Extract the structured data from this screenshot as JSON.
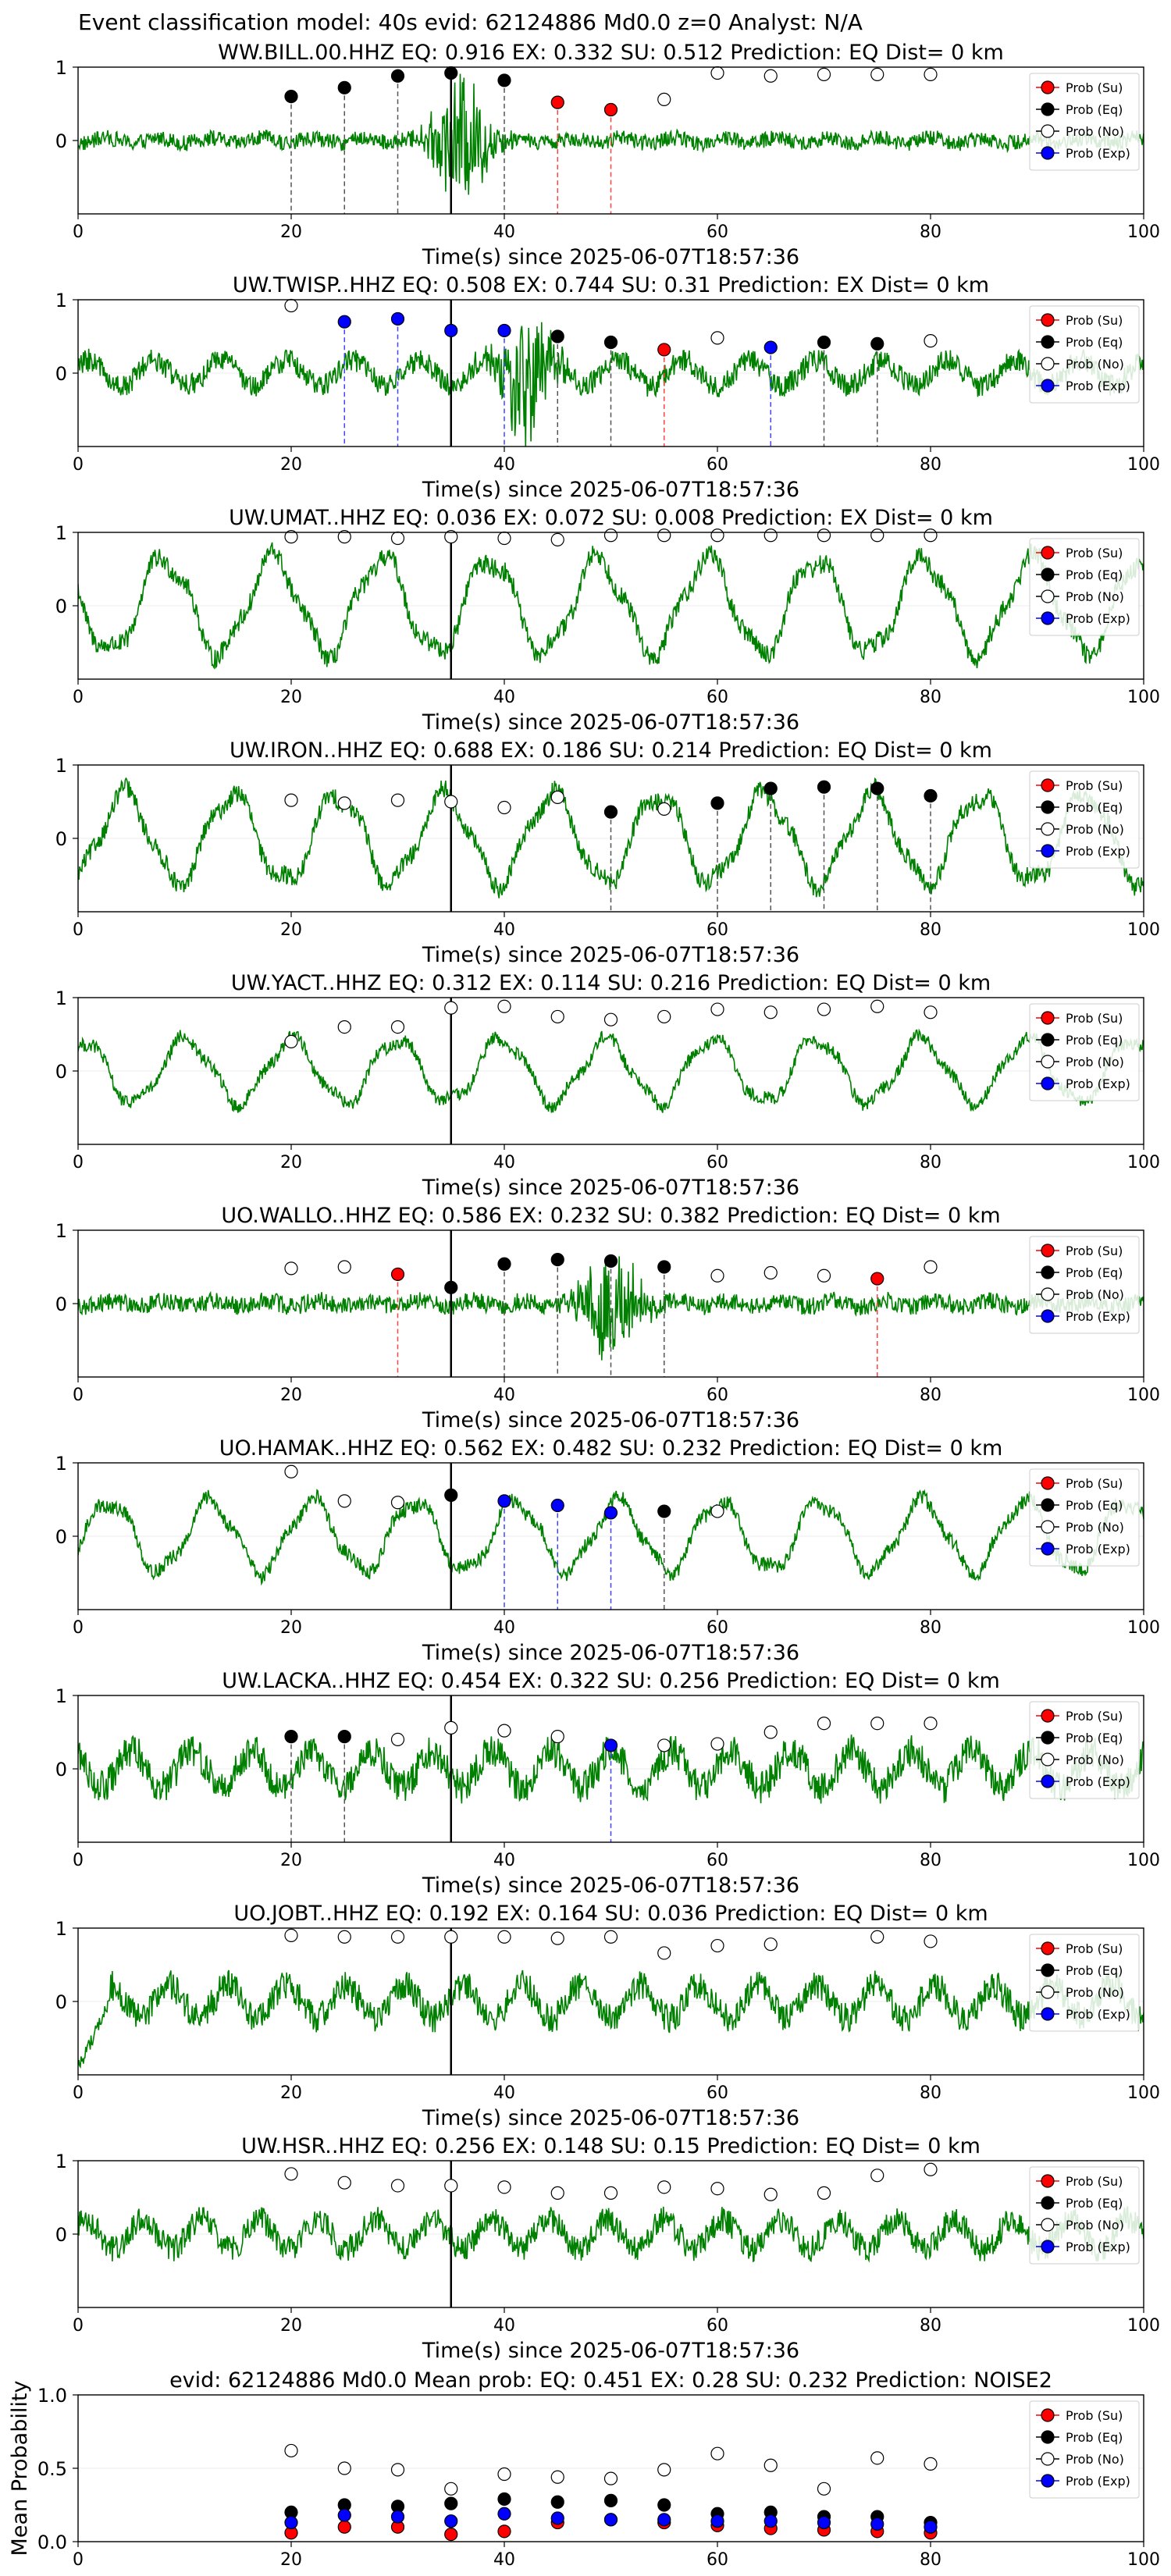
{
  "figure": {
    "suptitle": "Event classification model: 40s evid: 62124886 Md0.0 z=0 Analyst: N/A"
  },
  "legend_labels": [
    "Prob (Su)",
    "Prob (Eq)",
    "Prob (No)",
    "Prob (Exp)"
  ],
  "class_colors": {
    "Su": "#ff0000",
    "Eq": "#000000",
    "No": "#ffffff",
    "Exp": "#0000ff"
  },
  "waveform_color": "#008000",
  "chart_data": [
    {
      "type": "line",
      "title": "WW.BILL.00.HHZ   EQ: 0.916   EX: 0.332   SU: 0.512   Prediction: EQ    Dist= 0 km",
      "xlabel": "Time(s) since 2025-06-07T18:57:36",
      "xlim": [
        0,
        100
      ],
      "xticks": [
        0,
        20,
        40,
        60,
        80,
        100
      ],
      "ylim": [
        -1,
        1
      ],
      "yticks": [
        0,
        1
      ],
      "pick_time": 35,
      "waveform": {
        "amplitude": 0.18,
        "style": "noise",
        "burst_center": 36,
        "burst_amp": 0.85
      },
      "points": [
        {
          "t": 20,
          "p": 0.6,
          "cls": "Eq"
        },
        {
          "t": 25,
          "p": 0.72,
          "cls": "Eq"
        },
        {
          "t": 30,
          "p": 0.88,
          "cls": "Eq"
        },
        {
          "t": 35,
          "p": 0.92,
          "cls": "Eq"
        },
        {
          "t": 40,
          "p": 0.82,
          "cls": "Eq"
        },
        {
          "t": 45,
          "p": 0.52,
          "cls": "Su"
        },
        {
          "t": 50,
          "p": 0.42,
          "cls": "Su"
        },
        {
          "t": 55,
          "p": 0.56,
          "cls": "No"
        },
        {
          "t": 60,
          "p": 0.92,
          "cls": "No"
        },
        {
          "t": 65,
          "p": 0.88,
          "cls": "No"
        },
        {
          "t": 70,
          "p": 0.9,
          "cls": "No"
        },
        {
          "t": 75,
          "p": 0.9,
          "cls": "No"
        },
        {
          "t": 80,
          "p": 0.9,
          "cls": "No"
        }
      ]
    },
    {
      "type": "line",
      "title": "UW.TWISP..HHZ   EQ: 0.508   EX: 0.744   SU: 0.31   Prediction: EX    Dist= 0 km",
      "xlabel": "Time(s) since 2025-06-07T18:57:36",
      "xlim": [
        0,
        100
      ],
      "xticks": [
        0,
        20,
        40,
        60,
        80,
        100
      ],
      "ylim": [
        -1,
        1
      ],
      "yticks": [
        0,
        1
      ],
      "pick_time": 35,
      "waveform": {
        "amplitude": 0.35,
        "style": "mixed",
        "burst_center": 42,
        "burst_amp": 0.85
      },
      "points": [
        {
          "t": 20,
          "p": 0.92,
          "cls": "No"
        },
        {
          "t": 25,
          "p": 0.7,
          "cls": "Exp"
        },
        {
          "t": 30,
          "p": 0.74,
          "cls": "Exp"
        },
        {
          "t": 35,
          "p": 0.58,
          "cls": "Exp"
        },
        {
          "t": 40,
          "p": 0.58,
          "cls": "Exp"
        },
        {
          "t": 45,
          "p": 0.5,
          "cls": "Eq"
        },
        {
          "t": 50,
          "p": 0.42,
          "cls": "Eq"
        },
        {
          "t": 55,
          "p": 0.32,
          "cls": "Su"
        },
        {
          "t": 60,
          "p": 0.48,
          "cls": "No"
        },
        {
          "t": 65,
          "p": 0.35,
          "cls": "Exp"
        },
        {
          "t": 70,
          "p": 0.42,
          "cls": "Eq"
        },
        {
          "t": 75,
          "p": 0.4,
          "cls": "Eq"
        },
        {
          "t": 80,
          "p": 0.44,
          "cls": "No"
        }
      ]
    },
    {
      "type": "line",
      "title": "UW.UMAT..HHZ   EQ: 0.036   EX: 0.072   SU: 0.008   Prediction: EX    Dist= 0 km",
      "xlabel": "Time(s) since 2025-06-07T18:57:36",
      "xlim": [
        0,
        100
      ],
      "xticks": [
        0,
        20,
        40,
        60,
        80,
        100
      ],
      "ylim": [
        -1,
        1
      ],
      "yticks": [
        0,
        1
      ],
      "pick_time": 35,
      "waveform": {
        "amplitude": 0.75,
        "style": "wave"
      },
      "points": [
        {
          "t": 20,
          "p": 0.94,
          "cls": "No"
        },
        {
          "t": 25,
          "p": 0.94,
          "cls": "No"
        },
        {
          "t": 30,
          "p": 0.92,
          "cls": "No"
        },
        {
          "t": 35,
          "p": 0.94,
          "cls": "No"
        },
        {
          "t": 40,
          "p": 0.92,
          "cls": "No"
        },
        {
          "t": 45,
          "p": 0.9,
          "cls": "No"
        },
        {
          "t": 50,
          "p": 0.96,
          "cls": "No"
        },
        {
          "t": 55,
          "p": 0.96,
          "cls": "No"
        },
        {
          "t": 60,
          "p": 0.96,
          "cls": "No"
        },
        {
          "t": 65,
          "p": 0.96,
          "cls": "No"
        },
        {
          "t": 70,
          "p": 0.96,
          "cls": "No"
        },
        {
          "t": 75,
          "p": 0.96,
          "cls": "No"
        },
        {
          "t": 80,
          "p": 0.96,
          "cls": "No"
        }
      ]
    },
    {
      "type": "line",
      "title": "UW.IRON..HHZ   EQ: 0.688   EX: 0.186   SU: 0.214   Prediction: EQ    Dist= 0 km",
      "xlabel": "Time(s) since 2025-06-07T18:57:36",
      "xlim": [
        0,
        100
      ],
      "xticks": [
        0,
        20,
        40,
        60,
        80,
        100
      ],
      "ylim": [
        -1,
        1
      ],
      "yticks": [
        0,
        1
      ],
      "pick_time": 35,
      "waveform": {
        "amplitude": 0.7,
        "style": "wave"
      },
      "points": [
        {
          "t": 20,
          "p": 0.52,
          "cls": "No"
        },
        {
          "t": 25,
          "p": 0.48,
          "cls": "No"
        },
        {
          "t": 30,
          "p": 0.52,
          "cls": "No"
        },
        {
          "t": 35,
          "p": 0.5,
          "cls": "No"
        },
        {
          "t": 40,
          "p": 0.42,
          "cls": "No"
        },
        {
          "t": 45,
          "p": 0.56,
          "cls": "No"
        },
        {
          "t": 50,
          "p": 0.36,
          "cls": "Eq"
        },
        {
          "t": 55,
          "p": 0.4,
          "cls": "No"
        },
        {
          "t": 60,
          "p": 0.48,
          "cls": "Eq"
        },
        {
          "t": 65,
          "p": 0.68,
          "cls": "Eq"
        },
        {
          "t": 70,
          "p": 0.7,
          "cls": "Eq"
        },
        {
          "t": 75,
          "p": 0.68,
          "cls": "Eq"
        },
        {
          "t": 80,
          "p": 0.58,
          "cls": "Eq"
        }
      ]
    },
    {
      "type": "line",
      "title": "UW.YACT..HHZ   EQ: 0.312   EX: 0.114   SU: 0.216   Prediction: EQ    Dist= 0 km",
      "xlabel": "Time(s) since 2025-06-07T18:57:36",
      "xlim": [
        0,
        100
      ],
      "xticks": [
        0,
        20,
        40,
        60,
        80,
        100
      ],
      "ylim": [
        -1,
        1
      ],
      "yticks": [
        0,
        1
      ],
      "pick_time": 35,
      "waveform": {
        "amplitude": 0.5,
        "style": "wave"
      },
      "points": [
        {
          "t": 20,
          "p": 0.4,
          "cls": "No"
        },
        {
          "t": 25,
          "p": 0.6,
          "cls": "No"
        },
        {
          "t": 30,
          "p": 0.6,
          "cls": "No"
        },
        {
          "t": 35,
          "p": 0.86,
          "cls": "No"
        },
        {
          "t": 40,
          "p": 0.88,
          "cls": "No"
        },
        {
          "t": 45,
          "p": 0.74,
          "cls": "No"
        },
        {
          "t": 50,
          "p": 0.7,
          "cls": "No"
        },
        {
          "t": 55,
          "p": 0.74,
          "cls": "No"
        },
        {
          "t": 60,
          "p": 0.84,
          "cls": "No"
        },
        {
          "t": 65,
          "p": 0.8,
          "cls": "No"
        },
        {
          "t": 70,
          "p": 0.84,
          "cls": "No"
        },
        {
          "t": 75,
          "p": 0.88,
          "cls": "No"
        },
        {
          "t": 80,
          "p": 0.8,
          "cls": "No"
        }
      ]
    },
    {
      "type": "line",
      "title": "UO.WALLO..HHZ   EQ: 0.586   EX: 0.232   SU: 0.382   Prediction: EQ    Dist= 0 km",
      "xlabel": "Time(s) since 2025-06-07T18:57:36",
      "xlim": [
        0,
        100
      ],
      "xticks": [
        0,
        20,
        40,
        60,
        80,
        100
      ],
      "ylim": [
        -1,
        1
      ],
      "yticks": [
        0,
        1
      ],
      "pick_time": 35,
      "waveform": {
        "amplitude": 0.2,
        "style": "noise",
        "burst_center": 50,
        "burst_amp": 0.75
      },
      "points": [
        {
          "t": 20,
          "p": 0.48,
          "cls": "No"
        },
        {
          "t": 25,
          "p": 0.5,
          "cls": "No"
        },
        {
          "t": 30,
          "p": 0.4,
          "cls": "Su"
        },
        {
          "t": 35,
          "p": 0.22,
          "cls": "Eq"
        },
        {
          "t": 40,
          "p": 0.54,
          "cls": "Eq"
        },
        {
          "t": 45,
          "p": 0.6,
          "cls": "Eq"
        },
        {
          "t": 50,
          "p": 0.58,
          "cls": "Eq"
        },
        {
          "t": 55,
          "p": 0.5,
          "cls": "Eq"
        },
        {
          "t": 60,
          "p": 0.38,
          "cls": "No"
        },
        {
          "t": 65,
          "p": 0.42,
          "cls": "No"
        },
        {
          "t": 70,
          "p": 0.38,
          "cls": "No"
        },
        {
          "t": 75,
          "p": 0.34,
          "cls": "Su"
        },
        {
          "t": 80,
          "p": 0.5,
          "cls": "No"
        }
      ]
    },
    {
      "type": "line",
      "title": "UO.HAMAK..HHZ   EQ: 0.562   EX: 0.482   SU: 0.232   Prediction: EQ    Dist= 0 km",
      "xlabel": "Time(s) since 2025-06-07T18:57:36",
      "xlim": [
        0,
        100
      ],
      "xticks": [
        0,
        20,
        40,
        60,
        80,
        100
      ],
      "ylim": [
        -1,
        1
      ],
      "yticks": [
        0,
        1
      ],
      "pick_time": 35,
      "waveform": {
        "amplitude": 0.55,
        "style": "wave"
      },
      "points": [
        {
          "t": 20,
          "p": 0.88,
          "cls": "No"
        },
        {
          "t": 25,
          "p": 0.48,
          "cls": "No"
        },
        {
          "t": 30,
          "p": 0.46,
          "cls": "No"
        },
        {
          "t": 35,
          "p": 0.56,
          "cls": "Eq"
        },
        {
          "t": 40,
          "p": 0.48,
          "cls": "Exp"
        },
        {
          "t": 45,
          "p": 0.42,
          "cls": "Exp"
        },
        {
          "t": 50,
          "p": 0.32,
          "cls": "Exp"
        },
        {
          "t": 55,
          "p": 0.34,
          "cls": "Eq"
        },
        {
          "t": 60,
          "p": 0.34,
          "cls": "No"
        }
      ]
    },
    {
      "type": "line",
      "title": "UW.LACKA..HHZ   EQ: 0.454   EX: 0.322   SU: 0.256   Prediction: EQ    Dist= 0 km",
      "xlabel": "Time(s) since 2025-06-07T18:57:36",
      "xlim": [
        0,
        100
      ],
      "xticks": [
        0,
        20,
        40,
        60,
        80,
        100
      ],
      "ylim": [
        -1,
        1
      ],
      "yticks": [
        0,
        1
      ],
      "pick_time": 35,
      "waveform": {
        "amplitude": 0.5,
        "style": "mixed"
      },
      "points": [
        {
          "t": 20,
          "p": 0.44,
          "cls": "Eq"
        },
        {
          "t": 25,
          "p": 0.44,
          "cls": "Eq"
        },
        {
          "t": 30,
          "p": 0.4,
          "cls": "No"
        },
        {
          "t": 35,
          "p": 0.56,
          "cls": "No"
        },
        {
          "t": 40,
          "p": 0.52,
          "cls": "No"
        },
        {
          "t": 45,
          "p": 0.44,
          "cls": "No"
        },
        {
          "t": 50,
          "p": 0.32,
          "cls": "Exp"
        },
        {
          "t": 55,
          "p": 0.32,
          "cls": "No"
        },
        {
          "t": 60,
          "p": 0.34,
          "cls": "No"
        },
        {
          "t": 65,
          "p": 0.5,
          "cls": "No"
        },
        {
          "t": 70,
          "p": 0.62,
          "cls": "No"
        },
        {
          "t": 75,
          "p": 0.62,
          "cls": "No"
        },
        {
          "t": 80,
          "p": 0.62,
          "cls": "No"
        }
      ]
    },
    {
      "type": "line",
      "title": "UO.JOBT..HHZ   EQ: 0.192   EX: 0.164   SU: 0.036   Prediction: EQ    Dist= 0 km",
      "xlabel": "Time(s) since 2025-06-07T18:57:36",
      "xlim": [
        0,
        100
      ],
      "xticks": [
        0,
        20,
        40,
        60,
        80,
        100
      ],
      "ylim": [
        -1,
        1
      ],
      "yticks": [
        0,
        1
      ],
      "pick_time": 35,
      "waveform": {
        "amplitude": 0.45,
        "style": "mixed",
        "start_dip": true
      },
      "points": [
        {
          "t": 20,
          "p": 0.9,
          "cls": "No"
        },
        {
          "t": 25,
          "p": 0.88,
          "cls": "No"
        },
        {
          "t": 30,
          "p": 0.88,
          "cls": "No"
        },
        {
          "t": 35,
          "p": 0.88,
          "cls": "No"
        },
        {
          "t": 40,
          "p": 0.88,
          "cls": "No"
        },
        {
          "t": 45,
          "p": 0.86,
          "cls": "No"
        },
        {
          "t": 50,
          "p": 0.88,
          "cls": "No"
        },
        {
          "t": 55,
          "p": 0.66,
          "cls": "No"
        },
        {
          "t": 60,
          "p": 0.76,
          "cls": "No"
        },
        {
          "t": 65,
          "p": 0.78,
          "cls": "No"
        },
        {
          "t": 75,
          "p": 0.88,
          "cls": "No"
        },
        {
          "t": 80,
          "p": 0.82,
          "cls": "No"
        }
      ]
    },
    {
      "type": "line",
      "title": "UW.HSR..HHZ   EQ: 0.256   EX: 0.148   SU: 0.15   Prediction: EQ    Dist= 0 km",
      "xlabel": "Time(s) since 2025-06-07T18:57:36",
      "xlim": [
        0,
        100
      ],
      "xticks": [
        0,
        20,
        40,
        60,
        80,
        100
      ],
      "ylim": [
        -1,
        1
      ],
      "yticks": [
        0,
        1
      ],
      "pick_time": 35,
      "waveform": {
        "amplitude": 0.4,
        "style": "mixed"
      },
      "points": [
        {
          "t": 20,
          "p": 0.82,
          "cls": "No"
        },
        {
          "t": 25,
          "p": 0.7,
          "cls": "No"
        },
        {
          "t": 30,
          "p": 0.66,
          "cls": "No"
        },
        {
          "t": 35,
          "p": 0.66,
          "cls": "No"
        },
        {
          "t": 40,
          "p": 0.64,
          "cls": "No"
        },
        {
          "t": 45,
          "p": 0.56,
          "cls": "No"
        },
        {
          "t": 50,
          "p": 0.56,
          "cls": "No"
        },
        {
          "t": 55,
          "p": 0.64,
          "cls": "No"
        },
        {
          "t": 60,
          "p": 0.62,
          "cls": "No"
        },
        {
          "t": 65,
          "p": 0.54,
          "cls": "No"
        },
        {
          "t": 70,
          "p": 0.56,
          "cls": "No"
        },
        {
          "t": 75,
          "p": 0.8,
          "cls": "No"
        },
        {
          "t": 80,
          "p": 0.88,
          "cls": "No"
        }
      ]
    },
    {
      "type": "scatter",
      "title": "evid: 62124886  Md0.0   Mean prob:   EQ: 0.451   EX: 0.28   SU: 0.232   Prediction: NOISE2",
      "ylabel": "Mean Probability",
      "xlim": [
        0,
        100
      ],
      "xticks": [
        0,
        20,
        40,
        60,
        80,
        100
      ],
      "ylim": [
        0,
        1
      ],
      "yticks": [
        0.0,
        0.5,
        1.0
      ],
      "yticklabels": [
        "0.0",
        "0.5",
        "1.0"
      ],
      "series": [
        {
          "name": "Prob (Su)",
          "cls": "Su",
          "x": [
            20,
            25,
            30,
            35,
            40,
            45,
            50,
            55,
            60,
            65,
            70,
            75,
            80
          ],
          "y": [
            0.06,
            0.1,
            0.1,
            0.05,
            0.07,
            0.13,
            0.15,
            0.13,
            0.11,
            0.09,
            0.08,
            0.07,
            0.06
          ]
        },
        {
          "name": "Prob (Eq)",
          "cls": "Eq",
          "x": [
            20,
            25,
            30,
            35,
            40,
            45,
            50,
            55,
            60,
            65,
            70,
            75,
            80
          ],
          "y": [
            0.2,
            0.25,
            0.24,
            0.26,
            0.29,
            0.27,
            0.28,
            0.25,
            0.19,
            0.2,
            0.17,
            0.17,
            0.13
          ]
        },
        {
          "name": "Prob (No)",
          "cls": "No",
          "x": [
            20,
            25,
            30,
            35,
            40,
            45,
            50,
            55,
            60,
            65,
            70,
            75,
            80
          ],
          "y": [
            0.62,
            0.5,
            0.49,
            0.36,
            0.46,
            0.44,
            0.43,
            0.49,
            0.6,
            0.52,
            0.36,
            0.57,
            0.53
          ]
        },
        {
          "name": "Prob (Exp)",
          "cls": "Exp",
          "x": [
            20,
            25,
            30,
            35,
            40,
            45,
            50,
            55,
            60,
            65,
            70,
            75,
            80
          ],
          "y": [
            0.13,
            0.18,
            0.17,
            0.14,
            0.19,
            0.16,
            0.15,
            0.15,
            0.14,
            0.14,
            0.13,
            0.12,
            0.1
          ]
        }
      ]
    }
  ]
}
